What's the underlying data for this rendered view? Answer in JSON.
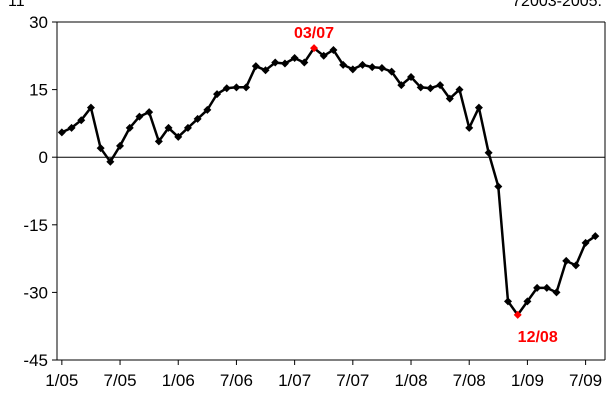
{
  "chart_data": {
    "type": "line",
    "title": "",
    "corner_text_left": "11",
    "corner_text_right": "72003-2005:",
    "xlabel": "",
    "ylabel": "",
    "ylim": [
      -45,
      30
    ],
    "y_ticks": [
      30,
      15,
      0,
      -15,
      -30,
      -45
    ],
    "x_tick_labels": [
      "1/05",
      "7/05",
      "1/06",
      "7/06",
      "1/07",
      "7/07",
      "1/08",
      "7/08",
      "1/09",
      "7/09"
    ],
    "series_color": "#000000",
    "highlight_color": "#ff0000",
    "series": [
      {
        "x": [
          "1/05",
          "2/05",
          "3/05",
          "4/05",
          "5/05",
          "6/05",
          "7/05",
          "8/05",
          "9/05",
          "10/05",
          "11/05",
          "12/05",
          "1/06",
          "2/06",
          "3/06",
          "4/06",
          "5/06",
          "6/06",
          "7/06",
          "8/06",
          "9/06",
          "10/06",
          "11/06",
          "12/06",
          "1/07",
          "2/07",
          "3/07",
          "4/07",
          "5/07",
          "6/07",
          "7/07",
          "8/07",
          "9/07",
          "10/07",
          "11/07",
          "12/07",
          "1/08",
          "2/08",
          "3/08",
          "4/08",
          "5/08",
          "6/08",
          "7/08",
          "8/08",
          "9/08",
          "10/08",
          "11/08",
          "12/08",
          "1/09",
          "2/09",
          "3/09",
          "4/09",
          "5/09",
          "6/09",
          "7/09",
          "8/09"
        ],
        "values": [
          5.5,
          6.5,
          8.2,
          11,
          2,
          -1,
          2.5,
          6.5,
          9,
          10,
          3.5,
          6.5,
          4.5,
          6.5,
          8.5,
          10.5,
          14,
          15.3,
          15.5,
          15.5,
          20.2,
          19.3,
          21,
          20.8,
          22,
          21,
          24.2,
          22.5,
          23.8,
          20.5,
          19.5,
          20.5,
          20,
          19.8,
          19,
          16,
          17.8,
          15.5,
          15.3,
          16,
          13,
          15,
          6.5,
          11,
          1,
          -6.5,
          -32,
          -35,
          -32,
          -29,
          -29,
          -30,
          -23,
          -24,
          -19,
          -17.5
        ]
      }
    ],
    "annotations": [
      {
        "text": "03/07",
        "x": "3/07",
        "value": 24.2
      },
      {
        "text": "12/08",
        "x": "12/08",
        "value": -35
      }
    ],
    "grid": false,
    "legend": "none"
  }
}
